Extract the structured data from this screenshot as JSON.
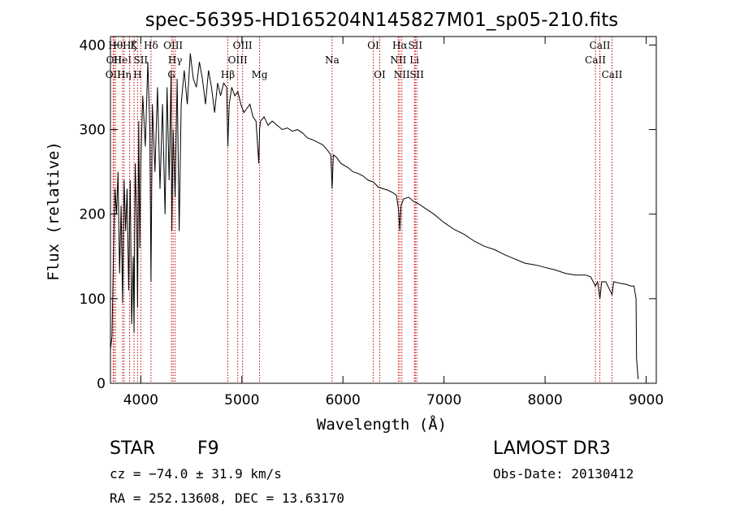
{
  "chart_data": {
    "type": "line",
    "title": "spec-56395-HD165204N145827M01_sp05-210.fits",
    "xlabel": "Wavelength (Å)",
    "ylabel": "Flux (relative)",
    "xlim": [
      3700,
      9100
    ],
    "ylim": [
      0,
      410
    ],
    "x_ticks": [
      4000,
      5000,
      6000,
      7000,
      8000,
      9000
    ],
    "y_ticks": [
      0,
      100,
      200,
      300,
      400
    ],
    "line_color": "#000000",
    "marker_color": "#cc0000",
    "series": [
      {
        "name": "spectrum",
        "x": [
          3700,
          3715,
          3730,
          3745,
          3760,
          3775,
          3790,
          3805,
          3820,
          3835,
          3850,
          3865,
          3880,
          3895,
          3910,
          3925,
          3933,
          3945,
          3960,
          3968,
          3980,
          3990,
          4000,
          4020,
          4045,
          4070,
          4090,
          4101,
          4115,
          4140,
          4165,
          4190,
          4215,
          4240,
          4260,
          4280,
          4300,
          4307,
          4320,
          4340,
          4360,
          4380,
          4400,
          4430,
          4460,
          4490,
          4520,
          4550,
          4580,
          4610,
          4640,
          4670,
          4700,
          4730,
          4760,
          4790,
          4820,
          4850,
          4861,
          4875,
          4900,
          4930,
          4960,
          4990,
          5020,
          5050,
          5080,
          5110,
          5140,
          5167,
          5175,
          5185,
          5220,
          5260,
          5300,
          5350,
          5400,
          5450,
          5500,
          5550,
          5600,
          5650,
          5700,
          5750,
          5800,
          5850,
          5880,
          5893,
          5905,
          5930,
          5980,
          6050,
          6100,
          6150,
          6200,
          6250,
          6300,
          6350,
          6400,
          6450,
          6500,
          6530,
          6550,
          6563,
          6575,
          6600,
          6650,
          6700,
          6750,
          6800,
          6900,
          7000,
          7100,
          7200,
          7300,
          7400,
          7500,
          7600,
          7700,
          7800,
          7900,
          8000,
          8100,
          8200,
          8300,
          8400,
          8450,
          8498,
          8520,
          8542,
          8560,
          8600,
          8662,
          8680,
          8750,
          8800,
          8850,
          8880,
          8900,
          8905,
          8920
        ],
        "values": [
          40,
          55,
          150,
          230,
          200,
          250,
          130,
          210,
          95,
          240,
          180,
          230,
          110,
          240,
          70,
          150,
          60,
          260,
          190,
          90,
          310,
          160,
          260,
          340,
          280,
          380,
          300,
          120,
          330,
          250,
          350,
          230,
          330,
          200,
          350,
          240,
          370,
          180,
          300,
          220,
          360,
          180,
          330,
          370,
          330,
          390,
          360,
          350,
          380,
          360,
          330,
          370,
          350,
          320,
          355,
          340,
          355,
          350,
          280,
          330,
          350,
          340,
          345,
          330,
          320,
          325,
          330,
          315,
          310,
          260,
          300,
          310,
          315,
          305,
          310,
          305,
          300,
          302,
          298,
          300,
          296,
          290,
          288,
          285,
          282,
          275,
          270,
          230,
          270,
          268,
          260,
          255,
          250,
          248,
          245,
          240,
          238,
          232,
          230,
          228,
          225,
          222,
          205,
          180,
          210,
          218,
          220,
          215,
          212,
          208,
          200,
          190,
          182,
          176,
          168,
          162,
          158,
          152,
          147,
          142,
          140,
          137,
          134,
          130,
          128,
          128,
          126,
          115,
          120,
          100,
          120,
          120,
          105,
          120,
          118,
          117,
          115,
          115,
          100,
          30,
          5
        ]
      }
    ],
    "line_markers": [
      {
        "wavelength": 3727,
        "label": "OII",
        "row": 2
      },
      {
        "wavelength": 3734,
        "label": "OII",
        "row": 1
      },
      {
        "wavelength": 3750,
        "label": "Hθ",
        "row": 0
      },
      {
        "wavelength": 3820,
        "label": "HeI",
        "row": 1
      },
      {
        "wavelength": 3835,
        "label": "Hη",
        "row": 2
      },
      {
        "wavelength": 3889,
        "label": "Hζ",
        "row": 0
      },
      {
        "wavelength": 3933,
        "label": "K",
        "row": 0
      },
      {
        "wavelength": 3968,
        "label": "H",
        "row": 2
      },
      {
        "wavelength": 4000,
        "label": "SII",
        "row": 1
      },
      {
        "wavelength": 4101,
        "label": "Hδ",
        "row": 0
      },
      {
        "wavelength": 4304,
        "label": "G",
        "row": 2
      },
      {
        "wavelength": 4320,
        "label": "OIII",
        "row": 0
      },
      {
        "wavelength": 4340,
        "label": "Hγ",
        "row": 1
      },
      {
        "wavelength": 4861,
        "label": "Hβ",
        "row": 2
      },
      {
        "wavelength": 4959,
        "label": "OIII",
        "row": 1
      },
      {
        "wavelength": 5007,
        "label": "OIII",
        "row": 0
      },
      {
        "wavelength": 5175,
        "label": "Mg",
        "row": 2
      },
      {
        "wavelength": 5893,
        "label": "Na",
        "row": 1
      },
      {
        "wavelength": 6300,
        "label": "OI",
        "row": 0
      },
      {
        "wavelength": 6364,
        "label": "OI",
        "row": 2
      },
      {
        "wavelength": 6548,
        "label": "NII",
        "row": 1
      },
      {
        "wavelength": 6563,
        "label": "Hα",
        "row": 0
      },
      {
        "wavelength": 6583,
        "label": "NII",
        "row": 2
      },
      {
        "wavelength": 6707,
        "label": "Li",
        "row": 1
      },
      {
        "wavelength": 6716,
        "label": "SII",
        "row": 0
      },
      {
        "wavelength": 6731,
        "label": "SII",
        "row": 2
      },
      {
        "wavelength": 8498,
        "label": "CaII",
        "row": 1
      },
      {
        "wavelength": 8542,
        "label": "CaII",
        "row": 0
      },
      {
        "wavelength": 8662,
        "label": "CaII",
        "row": 2
      }
    ]
  },
  "info": {
    "object_class": "STAR",
    "subclass": "F9",
    "survey": "LAMOST DR3",
    "redshift": "cz = −74.0 ± 31.9 km/s",
    "obs_date": "Obs-Date: 20130412",
    "coordinates": "RA = 252.13608, DEC =  13.63170"
  }
}
